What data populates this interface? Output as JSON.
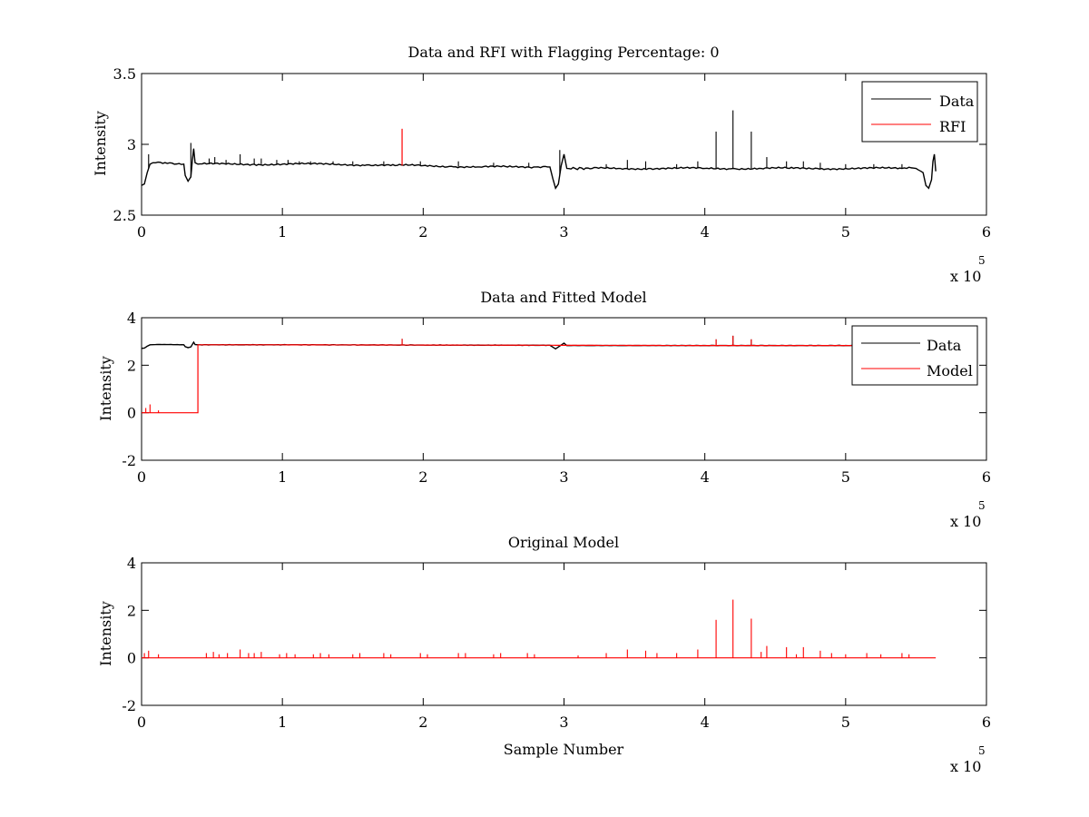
{
  "figure_background": "#ffffff",
  "colors": {
    "data": "#000000",
    "rfi": "#ff0000",
    "model": "#ff0000",
    "axes": "#000000"
  },
  "chart_data": [
    {
      "type": "line",
      "title": "Data and RFI with Flagging Percentage: 0",
      "xlabel": "",
      "ylabel": "Intensity",
      "xlim": [
        0,
        600000
      ],
      "ylim": [
        2.5,
        3.5
      ],
      "xticks": [
        0,
        1,
        2,
        3,
        4,
        5,
        6
      ],
      "yticks": [
        2.5,
        3,
        3.5
      ],
      "x_multiplier": "x 10",
      "x_multiplier_exponent": "5",
      "legend": {
        "placement": "top-right",
        "entries": [
          {
            "label": "Data",
            "color": "#000000"
          },
          {
            "label": "RFI",
            "color": "#ff0000"
          }
        ]
      },
      "series": [
        {
          "name": "Data",
          "color": "#000000",
          "x": [
            0,
            2000,
            4000,
            6000,
            8000,
            10000,
            20000,
            30000,
            31000,
            33000,
            35000,
            36000,
            37000,
            38000,
            40000,
            60000,
            80000,
            100000,
            120000,
            140000,
            160000,
            180000,
            200000,
            220000,
            240000,
            260000,
            280000,
            290000,
            292000,
            294000,
            296000,
            298000,
            300000,
            302000,
            320000,
            340000,
            360000,
            380000,
            400000,
            420000,
            440000,
            460000,
            480000,
            500000,
            520000,
            540000,
            550000,
            555000,
            557000,
            559000,
            561000,
            562000,
            563000,
            564000
          ],
          "y": [
            2.71,
            2.72,
            2.8,
            2.86,
            2.87,
            2.87,
            2.87,
            2.86,
            2.78,
            2.74,
            2.77,
            2.88,
            2.97,
            2.87,
            2.86,
            2.86,
            2.86,
            2.86,
            2.86,
            2.86,
            2.855,
            2.85,
            2.85,
            2.845,
            2.84,
            2.84,
            2.84,
            2.84,
            2.76,
            2.69,
            2.72,
            2.85,
            2.93,
            2.83,
            2.83,
            2.83,
            2.83,
            2.83,
            2.83,
            2.83,
            2.83,
            2.83,
            2.83,
            2.83,
            2.83,
            2.83,
            2.83,
            2.8,
            2.71,
            2.69,
            2.75,
            2.88,
            2.93,
            2.81
          ],
          "spikes": [
            [
              5000,
              2.93
            ],
            [
              35000,
              3.01
            ],
            [
              48000,
              2.9
            ],
            [
              52000,
              2.91
            ],
            [
              60000,
              2.89
            ],
            [
              70000,
              2.93
            ],
            [
              80000,
              2.9
            ],
            [
              85000,
              2.9
            ],
            [
              96000,
              2.89
            ],
            [
              104000,
              2.89
            ],
            [
              112000,
              2.88
            ],
            [
              120000,
              2.88
            ],
            [
              136000,
              2.88
            ],
            [
              150000,
              2.88
            ],
            [
              172000,
              2.88
            ],
            [
              198000,
              2.88
            ],
            [
              225000,
              2.88
            ],
            [
              250000,
              2.87
            ],
            [
              275000,
              2.87
            ],
            [
              297000,
              2.96
            ],
            [
              330000,
              2.86
            ],
            [
              345000,
              2.89
            ],
            [
              358000,
              2.88
            ],
            [
              380000,
              2.86
            ],
            [
              395000,
              2.88
            ],
            [
              408000,
              3.09
            ],
            [
              420000,
              3.24
            ],
            [
              433000,
              3.09
            ],
            [
              444000,
              2.91
            ],
            [
              458000,
              2.88
            ],
            [
              470000,
              2.88
            ],
            [
              482000,
              2.87
            ],
            [
              500000,
              2.86
            ],
            [
              520000,
              2.86
            ],
            [
              540000,
              2.86
            ]
          ]
        },
        {
          "name": "RFI",
          "color": "#ff0000",
          "x": [
            185000
          ],
          "y": [
            3.11
          ]
        }
      ]
    },
    {
      "type": "line",
      "title": "Data and Fitted Model",
      "xlabel": "",
      "ylabel": "Intensity",
      "xlim": [
        0,
        600000
      ],
      "ylim": [
        -2,
        4
      ],
      "xticks": [
        0,
        1,
        2,
        3,
        4,
        5,
        6
      ],
      "yticks": [
        -2,
        0,
        2,
        4
      ],
      "x_multiplier": "x 10",
      "x_multiplier_exponent": "5",
      "legend": {
        "placement": "top-right",
        "entries": [
          {
            "label": "Data",
            "color": "#000000"
          },
          {
            "label": "Model",
            "color": "#ff0000"
          }
        ]
      },
      "series": [
        {
          "name": "Data",
          "color": "#000000",
          "x": [
            0,
            2000,
            4000,
            6000,
            10000,
            30000,
            31000,
            33000,
            35000,
            37000,
            38000,
            40000,
            100000,
            200000,
            290000,
            294000,
            298000,
            300000,
            302000,
            400000,
            500000,
            555000,
            559000,
            562000,
            563000,
            564000
          ],
          "y": [
            2.71,
            2.72,
            2.8,
            2.86,
            2.87,
            2.86,
            2.78,
            2.74,
            2.77,
            2.97,
            2.87,
            2.86,
            2.86,
            2.85,
            2.84,
            2.69,
            2.85,
            2.93,
            2.83,
            2.83,
            2.83,
            2.8,
            2.69,
            2.88,
            2.93,
            2.81
          ],
          "spikes": [
            [
              185000,
              3.11
            ],
            [
              408000,
              3.09
            ],
            [
              420000,
              3.24
            ],
            [
              433000,
              3.09
            ]
          ]
        },
        {
          "name": "Model",
          "color": "#ff0000",
          "x": [
            0,
            40000,
            40000,
            100000,
            200000,
            300000,
            400000,
            500000,
            564000
          ],
          "y": [
            0,
            0,
            2.86,
            2.86,
            2.85,
            2.84,
            2.83,
            2.83,
            2.83
          ],
          "spikes": [
            [
              3000,
              0.2
            ],
            [
              6000,
              0.35
            ],
            [
              12000,
              0.1
            ],
            [
              185000,
              3.11
            ],
            [
              408000,
              3.09
            ],
            [
              420000,
              3.24
            ],
            [
              433000,
              3.09
            ]
          ]
        }
      ]
    },
    {
      "type": "line",
      "title": "Original Model",
      "xlabel": "Sample Number",
      "ylabel": "Intensity",
      "xlim": [
        0,
        600000
      ],
      "ylim": [
        -2,
        4
      ],
      "xticks": [
        0,
        1,
        2,
        3,
        4,
        5,
        6
      ],
      "yticks": [
        -2,
        0,
        2,
        4
      ],
      "x_multiplier": "x 10",
      "x_multiplier_exponent": "5",
      "series": [
        {
          "name": "Original Model",
          "color": "#ff0000",
          "x": [
            0,
            564000
          ],
          "y": [
            0,
            0
          ],
          "spikes": [
            [
              2000,
              0.2
            ],
            [
              5000,
              0.3
            ],
            [
              12000,
              0.15
            ],
            [
              46000,
              0.2
            ],
            [
              51000,
              0.25
            ],
            [
              55000,
              0.15
            ],
            [
              61000,
              0.2
            ],
            [
              70000,
              0.35
            ],
            [
              76000,
              0.2
            ],
            [
              80000,
              0.2
            ],
            [
              85000,
              0.25
            ],
            [
              98000,
              0.15
            ],
            [
              103000,
              0.2
            ],
            [
              109000,
              0.15
            ],
            [
              122000,
              0.15
            ],
            [
              127000,
              0.2
            ],
            [
              133000,
              0.15
            ],
            [
              150000,
              0.15
            ],
            [
              155000,
              0.2
            ],
            [
              172000,
              0.2
            ],
            [
              177000,
              0.15
            ],
            [
              198000,
              0.2
            ],
            [
              203000,
              0.15
            ],
            [
              225000,
              0.2
            ],
            [
              230000,
              0.2
            ],
            [
              250000,
              0.15
            ],
            [
              255000,
              0.2
            ],
            [
              274000,
              0.2
            ],
            [
              279000,
              0.15
            ],
            [
              310000,
              0.1
            ],
            [
              330000,
              0.2
            ],
            [
              345000,
              0.35
            ],
            [
              358000,
              0.3
            ],
            [
              366000,
              0.2
            ],
            [
              380000,
              0.2
            ],
            [
              395000,
              0.35
            ],
            [
              408000,
              1.6
            ],
            [
              420000,
              2.45
            ],
            [
              433000,
              1.65
            ],
            [
              440000,
              0.25
            ],
            [
              444000,
              0.5
            ],
            [
              458000,
              0.45
            ],
            [
              465000,
              0.15
            ],
            [
              470000,
              0.45
            ],
            [
              482000,
              0.3
            ],
            [
              490000,
              0.2
            ],
            [
              500000,
              0.15
            ],
            [
              515000,
              0.2
            ],
            [
              525000,
              0.15
            ],
            [
              540000,
              0.2
            ],
            [
              545000,
              0.15
            ]
          ]
        }
      ]
    }
  ]
}
